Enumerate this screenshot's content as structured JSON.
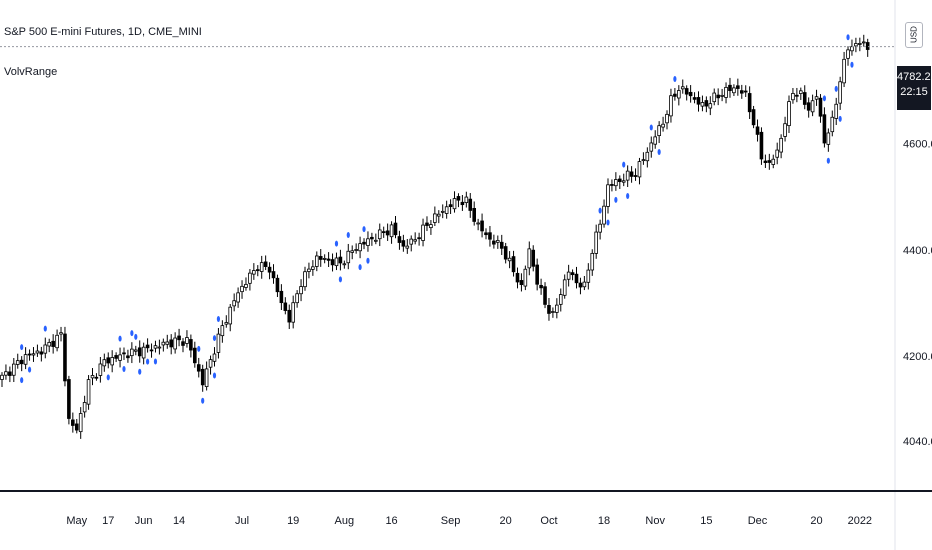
{
  "header": {
    "symbol_title": "S&P 500 E-mini Futures, 1D, CME_MINI",
    "indicator_label": "VolvRange",
    "currency": "USD"
  },
  "last_price": {
    "value": "4782.25",
    "countdown": "22:15"
  },
  "colors": {
    "candle_up": "#ffffff",
    "candle_down": "#000000",
    "wick": "#000000",
    "marker": "#2962ff",
    "axis_line": "#131722",
    "price_line": "#9598a1"
  },
  "chart_data": {
    "type": "candlestick",
    "title": "S&P 500 E-mini Futures, 1D, CME_MINI",
    "ylim": [
      3950,
      4870
    ],
    "y_ticks": [
      4040,
      4200,
      4400,
      4600
    ],
    "y_tick_labels": [
      "4040.00",
      "4200.00",
      "4400.00",
      "4600.00"
    ],
    "x_ticks": [
      {
        "index": 19,
        "label": "May"
      },
      {
        "index": 27,
        "label": "17"
      },
      {
        "index": 36,
        "label": "Jun"
      },
      {
        "index": 45,
        "label": "14"
      },
      {
        "index": 61,
        "label": "Jul"
      },
      {
        "index": 74,
        "label": "19"
      },
      {
        "index": 87,
        "label": "Aug"
      },
      {
        "index": 99,
        "label": "16"
      },
      {
        "index": 114,
        "label": "Sep"
      },
      {
        "index": 128,
        "label": "20"
      },
      {
        "index": 139,
        "label": "Oct"
      },
      {
        "index": 153,
        "label": "18"
      },
      {
        "index": 166,
        "label": "Nov"
      },
      {
        "index": 179,
        "label": "15"
      },
      {
        "index": 192,
        "label": "Dec"
      },
      {
        "index": 207,
        "label": "20"
      },
      {
        "index": 218,
        "label": "2022"
      }
    ],
    "price_line": 4782.25,
    "anchors": [
      {
        "i": 0,
        "c": 4160
      },
      {
        "i": 6,
        "c": 4200
      },
      {
        "i": 10,
        "c": 4210
      },
      {
        "i": 15,
        "c": 4240
      },
      {
        "i": 17,
        "c": 4080
      },
      {
        "i": 19,
        "c": 4060
      },
      {
        "i": 22,
        "c": 4150
      },
      {
        "i": 26,
        "c": 4190
      },
      {
        "i": 32,
        "c": 4205
      },
      {
        "i": 38,
        "c": 4215
      },
      {
        "i": 42,
        "c": 4225
      },
      {
        "i": 47,
        "c": 4230
      },
      {
        "i": 49,
        "c": 4190
      },
      {
        "i": 51,
        "c": 4150
      },
      {
        "i": 56,
        "c": 4255
      },
      {
        "i": 60,
        "c": 4320
      },
      {
        "i": 65,
        "c": 4370
      },
      {
        "i": 68,
        "c": 4365
      },
      {
        "i": 71,
        "c": 4300
      },
      {
        "i": 73,
        "c": 4270
      },
      {
        "i": 76,
        "c": 4340
      },
      {
        "i": 80,
        "c": 4385
      },
      {
        "i": 86,
        "c": 4375
      },
      {
        "i": 90,
        "c": 4405
      },
      {
        "i": 95,
        "c": 4425
      },
      {
        "i": 99,
        "c": 4440
      },
      {
        "i": 102,
        "c": 4405
      },
      {
        "i": 105,
        "c": 4420
      },
      {
        "i": 109,
        "c": 4455
      },
      {
        "i": 113,
        "c": 4480
      },
      {
        "i": 116,
        "c": 4495
      },
      {
        "i": 118,
        "c": 4490
      },
      {
        "i": 121,
        "c": 4445
      },
      {
        "i": 124,
        "c": 4420
      },
      {
        "i": 127,
        "c": 4405
      },
      {
        "i": 130,
        "c": 4360
      },
      {
        "i": 132,
        "c": 4330
      },
      {
        "i": 134,
        "c": 4400
      },
      {
        "i": 136,
        "c": 4340
      },
      {
        "i": 138,
        "c": 4300
      },
      {
        "i": 140,
        "c": 4275
      },
      {
        "i": 142,
        "c": 4320
      },
      {
        "i": 144,
        "c": 4360
      },
      {
        "i": 146,
        "c": 4340
      },
      {
        "i": 148,
        "c": 4330
      },
      {
        "i": 150,
        "c": 4400
      },
      {
        "i": 152,
        "c": 4450
      },
      {
        "i": 154,
        "c": 4520
      },
      {
        "i": 158,
        "c": 4535
      },
      {
        "i": 161,
        "c": 4545
      },
      {
        "i": 164,
        "c": 4585
      },
      {
        "i": 166,
        "c": 4615
      },
      {
        "i": 168,
        "c": 4640
      },
      {
        "i": 170,
        "c": 4680
      },
      {
        "i": 172,
        "c": 4705
      },
      {
        "i": 175,
        "c": 4690
      },
      {
        "i": 178,
        "c": 4670
      },
      {
        "i": 181,
        "c": 4685
      },
      {
        "i": 184,
        "c": 4700
      },
      {
        "i": 187,
        "c": 4705
      },
      {
        "i": 189,
        "c": 4690
      },
      {
        "i": 191,
        "c": 4640
      },
      {
        "i": 193,
        "c": 4575
      },
      {
        "i": 195,
        "c": 4560
      },
      {
        "i": 197,
        "c": 4585
      },
      {
        "i": 199,
        "c": 4640
      },
      {
        "i": 201,
        "c": 4700
      },
      {
        "i": 203,
        "c": 4690
      },
      {
        "i": 205,
        "c": 4665
      },
      {
        "i": 207,
        "c": 4690
      },
      {
        "i": 209,
        "c": 4605
      },
      {
        "i": 211,
        "c": 4640
      },
      {
        "i": 213,
        "c": 4720
      },
      {
        "i": 215,
        "c": 4780
      },
      {
        "i": 218,
        "c": 4790
      },
      {
        "i": 220,
        "c": 4782
      }
    ],
    "markers": [
      {
        "i": 5,
        "pos": "above"
      },
      {
        "i": 5,
        "pos": "below"
      },
      {
        "i": 7,
        "pos": "below"
      },
      {
        "i": 11,
        "pos": "above"
      },
      {
        "i": 27,
        "pos": "below"
      },
      {
        "i": 30,
        "pos": "above"
      },
      {
        "i": 31,
        "pos": "below"
      },
      {
        "i": 33,
        "pos": "above"
      },
      {
        "i": 34,
        "pos": "above"
      },
      {
        "i": 35,
        "pos": "below"
      },
      {
        "i": 37,
        "pos": "below"
      },
      {
        "i": 39,
        "pos": "below"
      },
      {
        "i": 50,
        "pos": "above"
      },
      {
        "i": 51,
        "pos": "below"
      },
      {
        "i": 54,
        "pos": "above"
      },
      {
        "i": 54,
        "pos": "below"
      },
      {
        "i": 55,
        "pos": "above"
      },
      {
        "i": 85,
        "pos": "above"
      },
      {
        "i": 86,
        "pos": "below"
      },
      {
        "i": 88,
        "pos": "above"
      },
      {
        "i": 91,
        "pos": "below"
      },
      {
        "i": 92,
        "pos": "above"
      },
      {
        "i": 93,
        "pos": "below"
      },
      {
        "i": 152,
        "pos": "above"
      },
      {
        "i": 154,
        "pos": "below"
      },
      {
        "i": 156,
        "pos": "below"
      },
      {
        "i": 158,
        "pos": "above"
      },
      {
        "i": 159,
        "pos": "below"
      },
      {
        "i": 165,
        "pos": "above"
      },
      {
        "i": 167,
        "pos": "below"
      },
      {
        "i": 171,
        "pos": "above"
      },
      {
        "i": 209,
        "pos": "above"
      },
      {
        "i": 210,
        "pos": "below"
      },
      {
        "i": 212,
        "pos": "above"
      },
      {
        "i": 213,
        "pos": "below"
      },
      {
        "i": 215,
        "pos": "above"
      },
      {
        "i": 216,
        "pos": "below"
      }
    ]
  }
}
